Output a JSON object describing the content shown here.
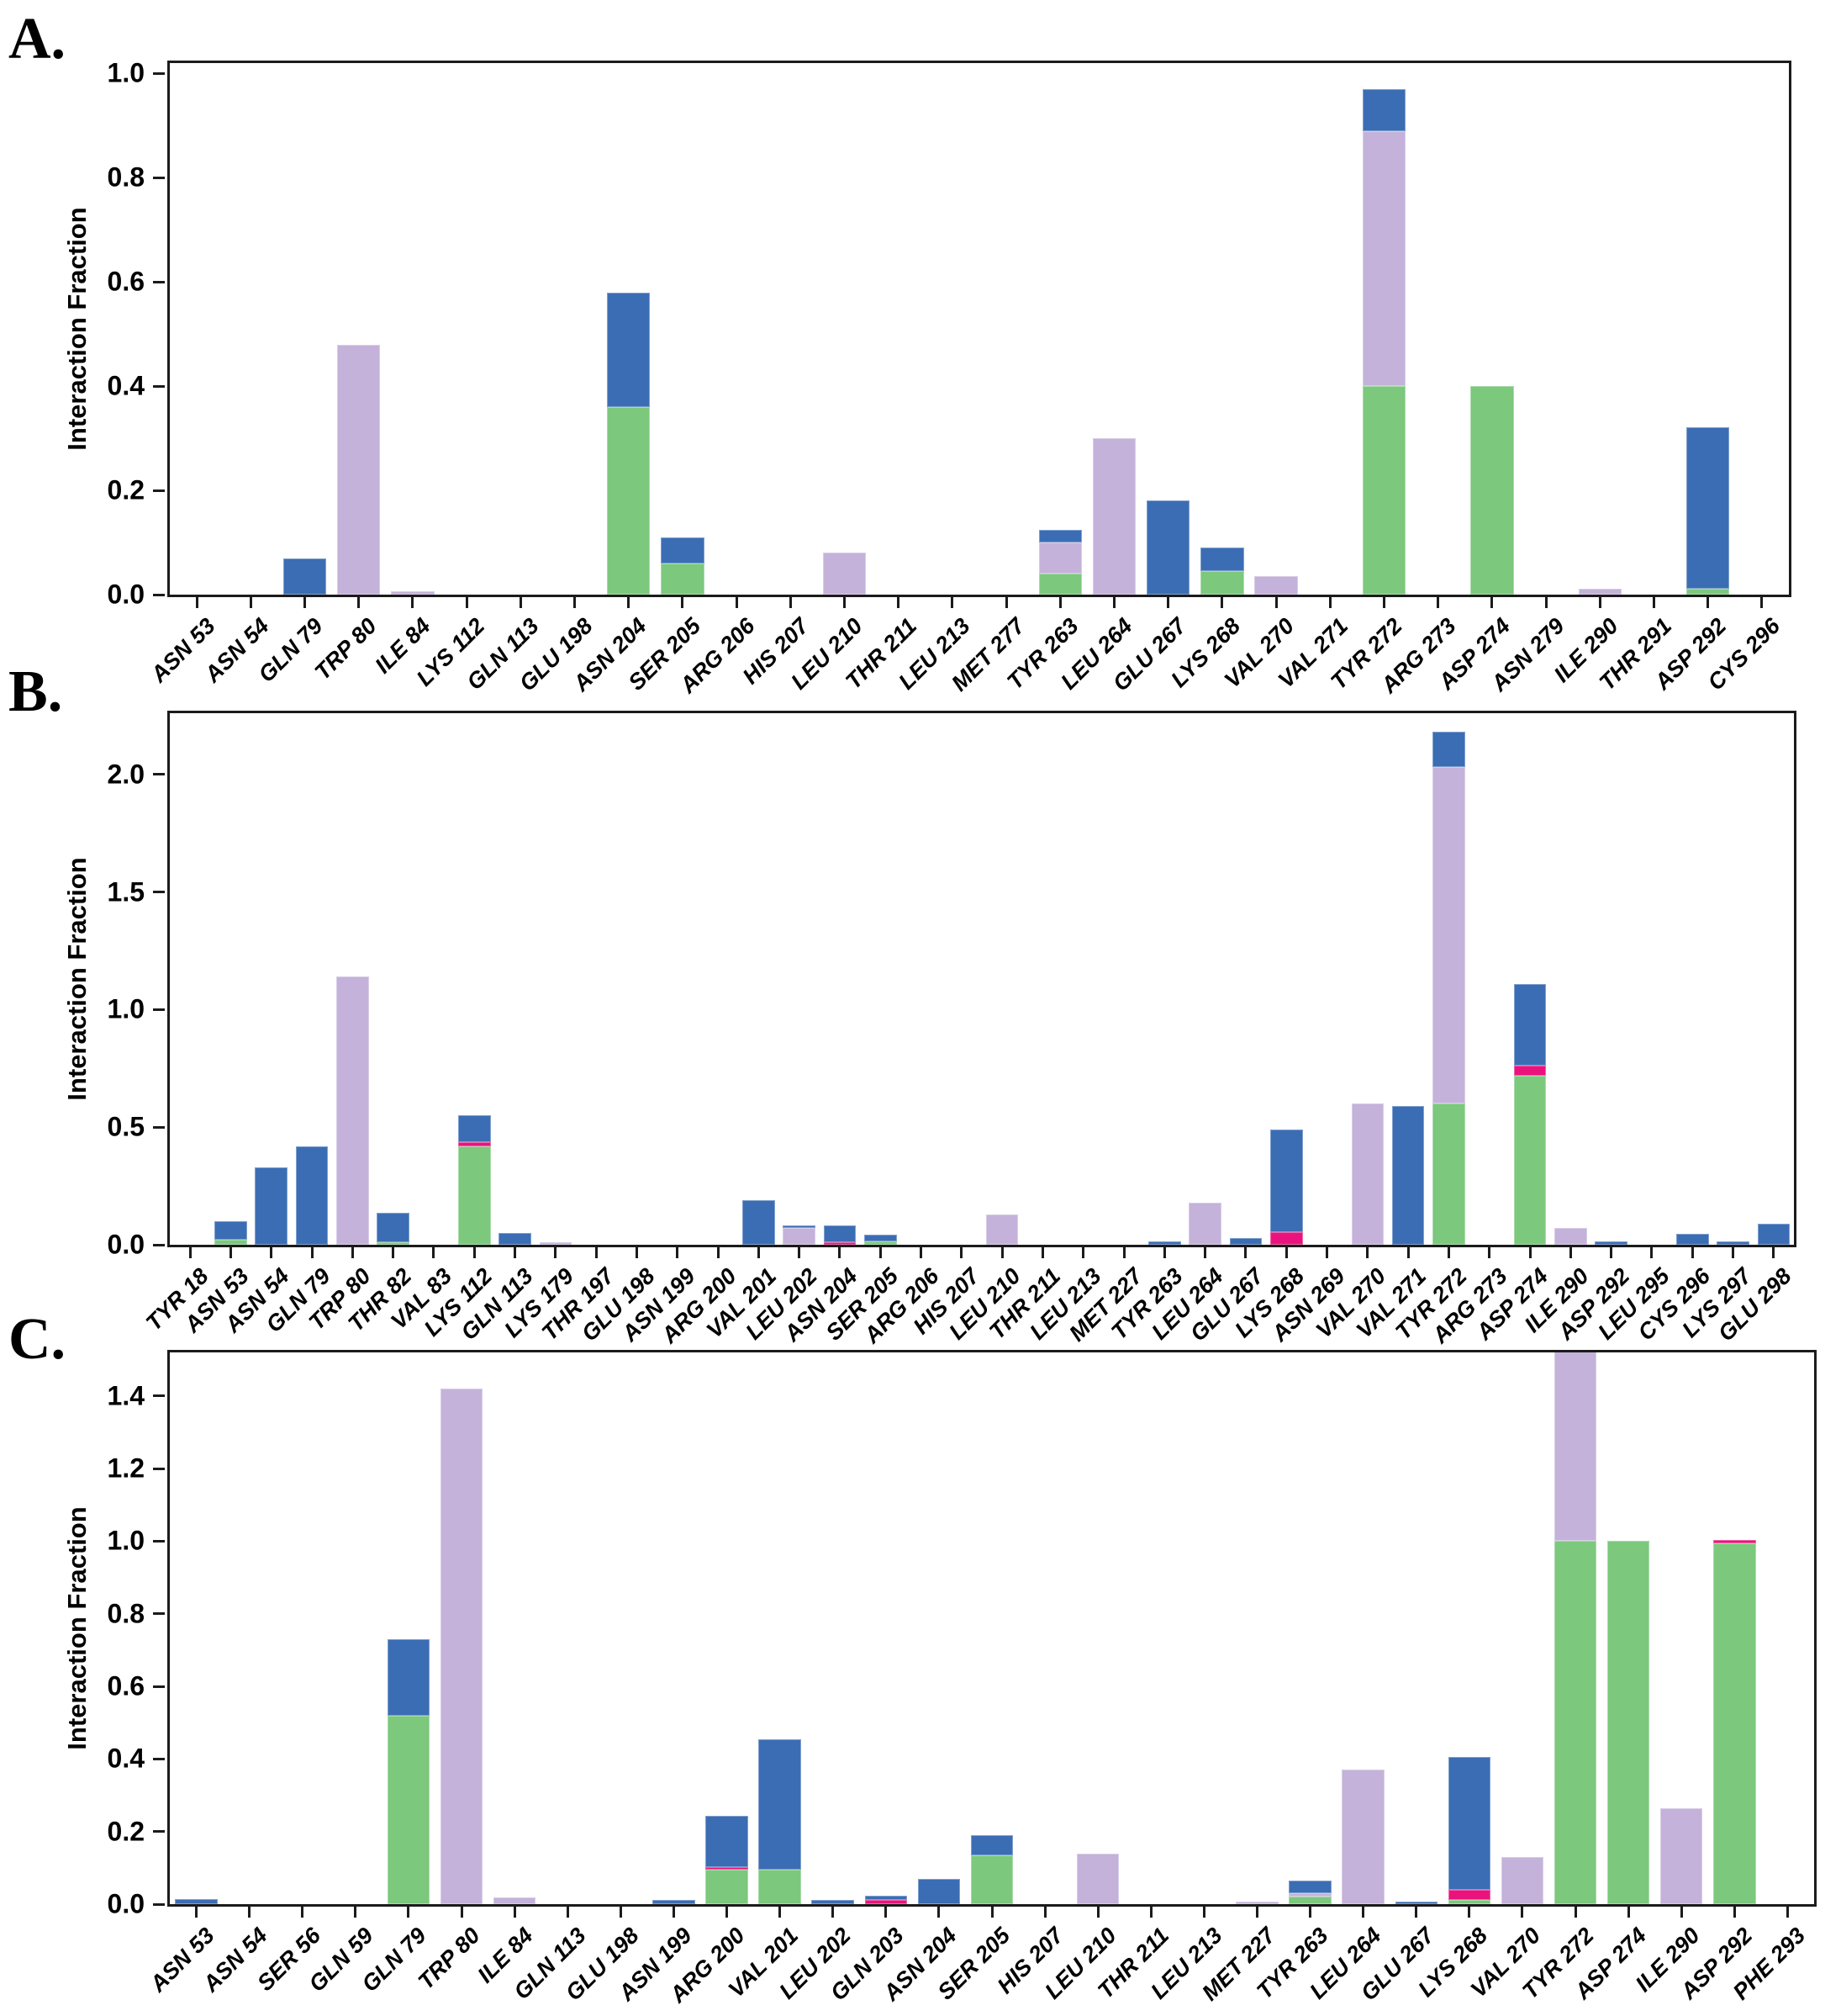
{
  "page": {
    "background": "#ffffff"
  },
  "colors": {
    "green": "#7CC87D",
    "lavender": "#C4B2DA",
    "pink": "#EA137D",
    "blue": "#3B6DB4",
    "axis": "#1b1b1b",
    "text": "#000000"
  },
  "segments_order": [
    "green",
    "lavender",
    "pink",
    "blue"
  ],
  "chart_data": [
    {
      "panel_label": "A.",
      "type": "bar",
      "stacked": true,
      "title": "",
      "xlabel": "",
      "ylabel": "Interaction Fraction",
      "ylim": [
        0,
        1.02
      ],
      "grid": false,
      "legend": "none",
      "yticks": [
        {
          "v": 1.0,
          "label": "1.0"
        },
        {
          "v": 0.8,
          "label": "0.8"
        },
        {
          "v": 0.6,
          "label": "0.6"
        },
        {
          "v": 0.4,
          "label": "0.4"
        },
        {
          "v": 0.2,
          "label": "0.2"
        },
        {
          "v": 0.0,
          "label": "0.0"
        }
      ],
      "categories": [
        "ASN 53",
        "ASN 54",
        "GLN 79",
        "TRP 80",
        "ILE 84",
        "LYS 112",
        "GLN 113",
        "GLU 198",
        "ASN 204",
        "SER 205",
        "ARG 206",
        "HIS 207",
        "LEU 210",
        "THR 211",
        "LEU 213",
        "MET 277",
        "TYR 263",
        "LEU 264",
        "GLU 267",
        "LYS 268",
        "VAL 270",
        "VAL 271",
        "TYR 272",
        "ARG 273",
        "ASP 274",
        "ASN 279",
        "ILE 290",
        "THR 291",
        "ASP 292",
        "CYS 296"
      ],
      "values": [
        {},
        {},
        {
          "blue": 0.07
        },
        {
          "lavender": 0.48
        },
        {
          "lavender": 0.006
        },
        {},
        {},
        {},
        {
          "green": 0.36,
          "blue": 0.22
        },
        {
          "green": 0.06,
          "blue": 0.05
        },
        {},
        {},
        {
          "lavender": 0.08
        },
        {},
        {},
        {},
        {
          "green": 0.04,
          "lavender": 0.06,
          "blue": 0.025
        },
        {
          "lavender": 0.3
        },
        {
          "blue": 0.18
        },
        {
          "green": 0.045,
          "blue": 0.045
        },
        {
          "lavender": 0.035
        },
        {},
        {
          "green": 0.4,
          "lavender": 0.49,
          "blue": 0.08
        },
        {},
        {
          "green": 0.4
        },
        {},
        {
          "lavender": 0.012
        },
        {},
        {
          "green": 0.012,
          "blue": 0.31
        },
        {}
      ]
    },
    {
      "panel_label": "B.",
      "type": "bar",
      "stacked": true,
      "title": "",
      "xlabel": "",
      "ylabel": "Interaction Fraction",
      "ylim": [
        0,
        2.26
      ],
      "grid": false,
      "legend": "none",
      "yticks": [
        {
          "v": 2.0,
          "label": "2.0"
        },
        {
          "v": 1.5,
          "label": "1.5"
        },
        {
          "v": 1.0,
          "label": "1.0"
        },
        {
          "v": 0.5,
          "label": "0.5"
        },
        {
          "v": 0.0,
          "label": "0.0"
        }
      ],
      "categories": [
        "TYR 18",
        "ASN 53",
        "ASN 54",
        "GLN 79",
        "TRP 80",
        "THR 82",
        "VAL 83",
        "LYS 112",
        "GLN 113",
        "LYS 179",
        "THR 197",
        "GLU 198",
        "ASN 199",
        "ARG 200",
        "VAL 201",
        "LEU 202",
        "ASN 204",
        "SER 205",
        "ARG 206",
        "HIS 207",
        "LEU 210",
        "THR 211",
        "LEU 213",
        "MET 227",
        "TYR 263",
        "LEU 264",
        "GLU 267",
        "LYS 268",
        "ASN 269",
        "VAL 270",
        "VAL 271",
        "TYR 272",
        "ARG 273",
        "ASP 274",
        "ILE 290",
        "ASP 292",
        "LEU 295",
        "CYS 296",
        "LYS 297",
        "GLU 298"
      ],
      "values": [
        {},
        {
          "green": 0.02,
          "blue": 0.08
        },
        {
          "blue": 0.33
        },
        {
          "blue": 0.42
        },
        {
          "lavender": 1.14
        },
        {
          "green": 0.01,
          "blue": 0.125
        },
        {},
        {
          "green": 0.42,
          "pink": 0.016,
          "blue": 0.114
        },
        {
          "blue": 0.05
        },
        {
          "lavender": 0.012
        },
        {},
        {},
        {},
        {},
        {
          "blue": 0.19
        },
        {
          "lavender": 0.07,
          "blue": 0.012
        },
        {
          "pink": 0.012,
          "blue": 0.07
        },
        {
          "green": 0.015,
          "blue": 0.028
        },
        {},
        {},
        {
          "lavender": 0.13
        },
        {},
        {},
        {},
        {
          "blue": 0.015
        },
        {
          "lavender": 0.18
        },
        {
          "blue": 0.03
        },
        {
          "pink": 0.055,
          "blue": 0.435
        },
        {},
        {
          "lavender": 0.6
        },
        {
          "blue": 0.59
        },
        {
          "green": 0.6,
          "lavender": 1.43,
          "blue": 0.15
        },
        {},
        {
          "green": 0.72,
          "pink": 0.04,
          "blue": 0.35
        },
        {
          "lavender": 0.07
        },
        {
          "blue": 0.015
        },
        {},
        {
          "blue": 0.045
        },
        {
          "blue": 0.015
        },
        {
          "blue": 0.09
        }
      ]
    },
    {
      "panel_label": "C.",
      "type": "bar",
      "stacked": true,
      "title": "",
      "xlabel": "",
      "ylabel": "Interaction Fraction",
      "ylim": [
        0,
        1.52
      ],
      "grid": false,
      "legend": "none",
      "clipped_bars": [
        "TYR 272"
      ],
      "yticks": [
        {
          "v": 1.4,
          "label": "1.4"
        },
        {
          "v": 1.2,
          "label": "1.2"
        },
        {
          "v": 1.0,
          "label": "1.0"
        },
        {
          "v": 0.8,
          "label": "0.8"
        },
        {
          "v": 0.6,
          "label": "0.6"
        },
        {
          "v": 0.4,
          "label": "0.4"
        },
        {
          "v": 0.2,
          "label": "0.2"
        },
        {
          "v": 0.0,
          "label": "0.0"
        }
      ],
      "categories": [
        "ASN 53",
        "ASN 54",
        "SER 56",
        "GLN 59",
        "GLN 79",
        "TRP 80",
        "ILE 84",
        "GLN 113",
        "GLU 198",
        "ASN 199",
        "ARG 200",
        "VAL 201",
        "LEU 202",
        "GLN 203",
        "ASN 204",
        "SER 205",
        "HIS 207",
        "LEU 210",
        "THR 211",
        "LEU 213",
        "MET 227",
        "TYR 263",
        "LEU 264",
        "GLU 267",
        "LYS 268",
        "VAL 270",
        "TYR 272",
        "ASP 274",
        "ILE 290",
        "ASP 292",
        "PHE 293"
      ],
      "values": [
        {
          "blue": 0.015
        },
        {},
        {},
        {},
        {
          "green": 0.52,
          "blue": 0.21
        },
        {
          "lavender": 1.42
        },
        {
          "lavender": 0.018
        },
        {},
        {},
        {
          "blue": 0.012
        },
        {
          "green": 0.095,
          "pink": 0.008,
          "blue": 0.14
        },
        {
          "green": 0.095,
          "blue": 0.36
        },
        {
          "blue": 0.012
        },
        {
          "pink": 0.012,
          "blue": 0.012
        },
        {
          "blue": 0.07
        },
        {
          "green": 0.135,
          "blue": 0.055
        },
        {},
        {
          "lavender": 0.14
        },
        {},
        {},
        {
          "lavender": 0.008
        },
        {
          "green": 0.02,
          "lavender": 0.01,
          "blue": 0.035
        },
        {
          "lavender": 0.37
        },
        {
          "blue": 0.006
        },
        {
          "green": 0.012,
          "pink": 0.028,
          "blue": 0.365
        },
        {
          "lavender": 0.13
        },
        {
          "green": 1.0,
          "lavender": 0.58
        },
        {
          "green": 1.0
        },
        {
          "lavender": 0.265
        },
        {
          "green": 0.995,
          "pink": 0.008
        },
        {}
      ]
    }
  ]
}
